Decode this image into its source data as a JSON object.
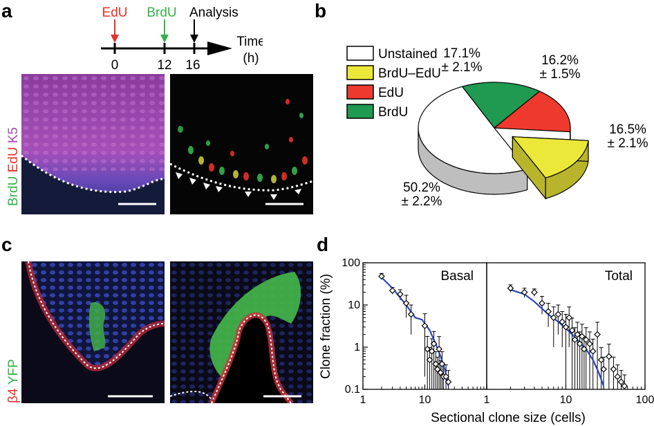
{
  "panel_labels": {
    "a": "a",
    "b": "b",
    "c": "c",
    "d": "d"
  },
  "colors": {
    "edu": "#e8302a",
    "brdu": "#35b24a",
    "k5": "#a54fb0",
    "yfp": "#35b24a",
    "beta4": "#e8302a",
    "fit_line": "#2a45b8",
    "pie_white": "#ffffff",
    "pie_yellow": "#ece839",
    "pie_red": "#ee3a2e",
    "pie_green": "#1f9a50"
  },
  "timeline": {
    "markers": [
      {
        "label": "EdU",
        "tick": "0"
      },
      {
        "label": "BrdU",
        "tick": "12"
      },
      {
        "label": "Analysis",
        "tick": "16"
      }
    ],
    "axis_label": "Time",
    "axis_unit": "(h)"
  },
  "panel_a": {
    "stain_labels": [
      "BrdU",
      "EdU",
      "K5"
    ]
  },
  "panel_c": {
    "stain_labels": [
      "β4",
      "YFP"
    ]
  },
  "chart_data": [
    {
      "type": "pie",
      "panel": "b",
      "legend_position": "left",
      "slices": [
        {
          "label": "Unstained",
          "value": 50.2,
          "error": 2.2,
          "text_value": "50.2%",
          "text_error": "± 2.2%",
          "color": "#ffffff"
        },
        {
          "label": "BrdU–EdU",
          "value": 16.5,
          "error": 2.1,
          "text_value": "16.5%",
          "text_error": "± 2.1%",
          "color": "#ece839",
          "exploded": true
        },
        {
          "label": "EdU",
          "value": 16.2,
          "error": 1.5,
          "text_value": "16.2%",
          "text_error": "± 1.5%",
          "color": "#ee3a2e"
        },
        {
          "label": "BrdU",
          "value": 17.1,
          "error": 2.1,
          "text_value": "17.1%",
          "text_error": "± 2.1%",
          "color": "#1f9a50"
        }
      ]
    },
    {
      "type": "scatter",
      "panel": "d",
      "title": "Basal",
      "xlabel": "Sectional clone size (cells)",
      "ylabel": "Clone fraction (%)",
      "xscale": "log",
      "yscale": "log",
      "xlim": [
        1,
        100
      ],
      "ylim": [
        0.1,
        100
      ],
      "xticks": [
        "1",
        "10",
        "100"
      ],
      "yticks": [
        "0.1",
        "1",
        "10",
        "100"
      ],
      "grid": false,
      "points": [
        {
          "x": 2,
          "y": 48,
          "err": 8
        },
        {
          "x": 3,
          "y": 22,
          "err": 4
        },
        {
          "x": 4,
          "y": 18,
          "err": 5
        },
        {
          "x": 5,
          "y": 11,
          "err": 6
        },
        {
          "x": 6,
          "y": 6,
          "err": 4
        },
        {
          "x": 10,
          "y": 3.2,
          "err": 3
        },
        {
          "x": 11,
          "y": 0.9,
          "err": 0.9
        },
        {
          "x": 12,
          "y": 0.5,
          "err": 0.48
        },
        {
          "x": 13,
          "y": 0.8,
          "err": 0.78
        },
        {
          "x": 14,
          "y": 1.2,
          "err": 1.15
        },
        {
          "x": 15,
          "y": 0.4,
          "err": 0.38
        },
        {
          "x": 16,
          "y": 0.3,
          "err": 0.28
        },
        {
          "x": 17,
          "y": 0.9,
          "err": 0.88
        },
        {
          "x": 18,
          "y": 0.25,
          "err": 0.23
        },
        {
          "x": 19,
          "y": 0.4,
          "err": 0.38
        },
        {
          "x": 20,
          "y": 0.2,
          "err": 0.18
        },
        {
          "x": 22,
          "y": 0.2,
          "err": 0.18
        },
        {
          "x": 24,
          "y": 0.15,
          "err": 0.13
        }
      ],
      "fit": [
        [
          2,
          45
        ],
        [
          3,
          25
        ],
        [
          5,
          10
        ],
        [
          7,
          5
        ],
        [
          9,
          4.5
        ],
        [
          12,
          2.5
        ],
        [
          15,
          1.2
        ],
        [
          18,
          0.6
        ],
        [
          21,
          0.3
        ],
        [
          24,
          0.12
        ]
      ]
    },
    {
      "type": "scatter",
      "panel": "d",
      "title": "Total",
      "xlabel": "Sectional clone size (cells)",
      "ylabel": "Clone fraction (%)",
      "xscale": "log",
      "yscale": "log",
      "xlim": [
        1,
        100
      ],
      "ylim": [
        0.1,
        100
      ],
      "xticks": [
        "1",
        "10",
        "100"
      ],
      "grid": false,
      "points": [
        {
          "x": 2,
          "y": 25,
          "err": 5
        },
        {
          "x": 3,
          "y": 20,
          "err": 5
        },
        {
          "x": 4,
          "y": 20,
          "err": 4
        },
        {
          "x": 5,
          "y": 11,
          "err": 5
        },
        {
          "x": 6,
          "y": 7,
          "err": 4
        },
        {
          "x": 7,
          "y": 5,
          "err": 4
        },
        {
          "x": 8,
          "y": 6,
          "err": 4
        },
        {
          "x": 9,
          "y": 4,
          "err": 3
        },
        {
          "x": 10,
          "y": 3,
          "err": 3
        },
        {
          "x": 11,
          "y": 5,
          "err": 4
        },
        {
          "x": 12,
          "y": 2.5,
          "err": 2.4
        },
        {
          "x": 13,
          "y": 1.5,
          "err": 1.4
        },
        {
          "x": 14,
          "y": 2,
          "err": 1.9
        },
        {
          "x": 15,
          "y": 1.2,
          "err": 1.1
        },
        {
          "x": 16,
          "y": 1.8,
          "err": 1.7
        },
        {
          "x": 17,
          "y": 0.9,
          "err": 0.85
        },
        {
          "x": 18,
          "y": 1.5,
          "err": 1.4
        },
        {
          "x": 20,
          "y": 1.2,
          "err": 1.1
        },
        {
          "x": 22,
          "y": 0.8,
          "err": 0.75
        },
        {
          "x": 25,
          "y": 2,
          "err": 1.9
        },
        {
          "x": 28,
          "y": 0.5,
          "err": 0.48
        },
        {
          "x": 30,
          "y": 0.3,
          "err": 0.28
        },
        {
          "x": 35,
          "y": 0.6,
          "err": 0.58
        },
        {
          "x": 40,
          "y": 0.3,
          "err": 0.28
        },
        {
          "x": 45,
          "y": 0.2,
          "err": 0.18
        },
        {
          "x": 50,
          "y": 0.15,
          "err": 0.13
        },
        {
          "x": 55,
          "y": 0.12,
          "err": 0.1
        }
      ],
      "fit": [
        [
          2,
          23
        ],
        [
          3,
          18
        ],
        [
          4,
          12
        ],
        [
          6,
          6
        ],
        [
          8,
          4
        ],
        [
          10,
          2.8
        ],
        [
          14,
          1.5
        ],
        [
          18,
          0.9
        ],
        [
          22,
          0.5
        ],
        [
          26,
          0.25
        ],
        [
          30,
          0.12
        ]
      ]
    }
  ]
}
